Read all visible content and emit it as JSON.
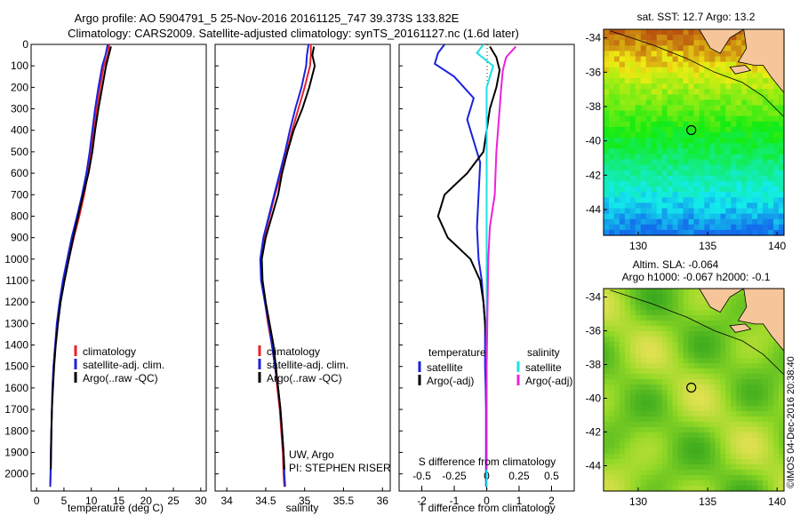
{
  "header": {
    "line1": "Argo profile: AO 5904791_5 25-Nov-2016 20161125_747 39.373S 133.82E",
    "line2": "Climatology: CARS2009. Satellite-adjusted climatology: synTS_20161127.nc (1.6d later)"
  },
  "colors": {
    "climatology": "#e8202a",
    "satellite": "#1a22dd",
    "argo": "#000000",
    "sal_satellite": "#1ee0e0",
    "sal_argo": "#ee20dd",
    "land": "#f6c69a",
    "map_marker": "#000000"
  },
  "chart_data": [
    {
      "id": "temperature-profile",
      "type": "line",
      "xlabel": "temperature (deg C)",
      "ylabel": "",
      "xlim": [
        -1,
        31
      ],
      "ylim": [
        2080,
        0
      ],
      "xticks": [
        0,
        5,
        10,
        15,
        20,
        25,
        30
      ],
      "yticks": [
        0,
        100,
        200,
        300,
        400,
        500,
        600,
        700,
        800,
        900,
        1000,
        1100,
        1200,
        1300,
        1400,
        1500,
        1600,
        1700,
        1800,
        1900,
        2000
      ],
      "legend": [
        "climatology",
        "satellite-adj. clim.",
        "Argo(..raw -QC)"
      ],
      "series": [
        {
          "name": "climatology",
          "color_key": "climatology",
          "x": [
            13.3,
            13.0,
            12.3,
            11.6,
            11.0,
            10.5,
            10.0,
            9.4,
            8.7,
            7.8,
            6.8,
            5.9,
            5.0,
            4.3,
            3.8,
            3.4,
            3.1,
            2.9,
            2.8,
            2.7,
            2.6,
            2.55,
            2.5
          ],
          "y": [
            0,
            50,
            100,
            200,
            300,
            400,
            500,
            600,
            700,
            800,
            900,
            1000,
            1100,
            1200,
            1300,
            1400,
            1500,
            1600,
            1700,
            1800,
            1900,
            2000,
            2060
          ]
        },
        {
          "name": "satellite-adj. clim.",
          "color_key": "satellite",
          "x": [
            13.0,
            12.6,
            12.0,
            11.3,
            10.7,
            10.2,
            9.7,
            9.1,
            8.3,
            7.4,
            6.4,
            5.6,
            4.8,
            4.2,
            3.7,
            3.4,
            3.1,
            2.9,
            2.8,
            2.7,
            2.6,
            2.55,
            2.5
          ],
          "y": [
            0,
            50,
            100,
            200,
            300,
            400,
            500,
            600,
            700,
            800,
            900,
            1000,
            1100,
            1200,
            1300,
            1400,
            1500,
            1600,
            1700,
            1800,
            1900,
            2000,
            2060
          ]
        },
        {
          "name": "Argo(..raw -QC)",
          "color_key": "argo",
          "x": [
            13.6,
            13.2,
            12.7,
            12.0,
            11.3,
            10.7,
            10.2,
            9.5,
            8.5,
            7.6,
            6.7,
            5.9,
            5.1,
            4.4,
            3.9,
            3.5,
            3.2,
            3.0,
            2.8,
            2.7,
            2.65,
            2.6
          ],
          "y": [
            10,
            50,
            100,
            200,
            300,
            400,
            500,
            600,
            700,
            800,
            900,
            1000,
            1100,
            1200,
            1300,
            1400,
            1500,
            1600,
            1700,
            1800,
            1900,
            1980
          ]
        }
      ]
    },
    {
      "id": "salinity-profile",
      "type": "line",
      "xlabel": "salinity",
      "ylabel": "",
      "xlim": [
        33.85,
        36.1
      ],
      "ylim": [
        2080,
        0
      ],
      "xticks": [
        34,
        34.5,
        35,
        35.5,
        36
      ],
      "legend": [
        "climatology",
        "satellite-adj. clim.",
        "Argo(..raw -QC)"
      ],
      "annotations": [
        "UW, Argo",
        "PI: STEPHEN RISER"
      ],
      "series": [
        {
          "name": "climatology",
          "color_key": "climatology",
          "x": [
            35.08,
            35.08,
            35.07,
            35.0,
            34.92,
            34.84,
            34.77,
            34.7,
            34.62,
            34.55,
            34.48,
            34.44,
            34.45,
            34.49,
            34.53,
            34.58,
            34.62,
            34.65,
            34.68,
            34.7,
            34.72,
            34.73,
            34.74
          ],
          "y": [
            0,
            50,
            100,
            200,
            300,
            400,
            500,
            600,
            700,
            800,
            900,
            1000,
            1100,
            1200,
            1300,
            1400,
            1500,
            1600,
            1700,
            1800,
            1900,
            2000,
            2060
          ]
        },
        {
          "name": "satellite-adj. clim.",
          "color_key": "satellite",
          "x": [
            35.05,
            35.03,
            35.02,
            34.96,
            34.88,
            34.81,
            34.75,
            34.68,
            34.61,
            34.54,
            34.47,
            34.43,
            34.44,
            34.49,
            34.54,
            34.58,
            34.62,
            34.66,
            34.69,
            34.71,
            34.73,
            34.74,
            34.75
          ],
          "y": [
            0,
            50,
            100,
            200,
            300,
            400,
            500,
            600,
            700,
            800,
            900,
            1000,
            1100,
            1200,
            1300,
            1400,
            1500,
            1600,
            1700,
            1800,
            1900,
            2000,
            2060
          ]
        },
        {
          "name": "Argo(..raw -QC)",
          "color_key": "argo",
          "x": [
            35.12,
            35.1,
            35.13,
            35.06,
            34.97,
            34.86,
            34.78,
            34.71,
            34.66,
            34.58,
            34.5,
            34.45,
            34.46,
            34.5,
            34.55,
            34.6,
            34.63,
            34.66,
            34.69,
            34.71,
            34.73,
            34.74
          ],
          "y": [
            10,
            50,
            100,
            200,
            300,
            400,
            500,
            600,
            700,
            800,
            900,
            1000,
            1100,
            1200,
            1300,
            1400,
            1500,
            1600,
            1700,
            1800,
            1900,
            1980
          ]
        }
      ]
    },
    {
      "id": "difference-profile",
      "type": "line",
      "xlabel": "T difference from climatology",
      "xlabel_top": "S difference from climatology",
      "xlim": [
        -2.7,
        2.7
      ],
      "ylim": [
        2080,
        0
      ],
      "xticks": [
        -2,
        -1,
        0,
        1,
        2
      ],
      "top_ticks": [
        "-0.5",
        "-0.25",
        "0",
        "0.25",
        "0.5"
      ],
      "legend_groups": [
        {
          "title": "temperature",
          "items": [
            "satellite",
            "Argo(-adj)"
          ]
        },
        {
          "title": "salinity",
          "items": [
            "satellite",
            "Argo(-adj)"
          ]
        }
      ],
      "series": [
        {
          "name": "temperature satellite",
          "color_key": "satellite",
          "x": [
            -1.3,
            -1.5,
            -1.6,
            -1.0,
            -0.4,
            -0.6,
            -0.4,
            -0.2,
            -0.25,
            -0.3,
            -0.25,
            -0.15,
            -0.1,
            -0.05,
            -0.05,
            -0.05,
            -0.03,
            -0.02,
            -0.02,
            -0.02,
            -0.02,
            -0.02
          ],
          "y": [
            0,
            40,
            90,
            150,
            250,
            350,
            450,
            550,
            700,
            850,
            1000,
            1100,
            1200,
            1300,
            1400,
            1500,
            1600,
            1700,
            1800,
            1900,
            2000,
            2060
          ]
        },
        {
          "name": "temperature Argo(-adj)",
          "color_key": "argo",
          "x": [
            0.1,
            0.3,
            0.4,
            0.3,
            0.1,
            0.0,
            -0.1,
            -0.6,
            -1.3,
            -1.5,
            -1.2,
            -0.5,
            -0.2,
            -0.1,
            -0.05,
            0.0,
            0.0,
            0.0,
            0.0,
            0.0,
            0.0
          ],
          "y": [
            10,
            60,
            120,
            200,
            300,
            400,
            500,
            600,
            700,
            800,
            900,
            1000,
            1100,
            1200,
            1300,
            1400,
            1500,
            1600,
            1700,
            1800,
            1980
          ]
        },
        {
          "name": "salinity satellite",
          "color_key": "sal_satellite",
          "x": [
            -0.1,
            -0.3,
            0.2,
            0.0,
            0.0,
            0.0,
            0.0,
            0.0,
            0.0,
            0.0
          ],
          "y": [
            0,
            40,
            100,
            200,
            400,
            600,
            800,
            1000,
            1500,
            2060
          ]
        },
        {
          "name": "salinity Argo(-adj)",
          "color_key": "sal_argo",
          "x": [
            0.9,
            0.6,
            0.5,
            0.45,
            0.4,
            0.3,
            0.25,
            0.1,
            0.05,
            0.0,
            0.0
          ],
          "y": [
            10,
            60,
            120,
            200,
            300,
            500,
            700,
            850,
            1000,
            1500,
            1980
          ]
        }
      ]
    }
  ],
  "maps": [
    {
      "id": "sst-map",
      "title": "sat. SST: 12.7  Argo: 13.2",
      "title_lines": [],
      "x_ticks": [
        "130",
        "135",
        "140"
      ],
      "y_ticks": [
        "-34",
        "-36",
        "-38",
        "-40",
        "-42",
        "-44"
      ],
      "lon_range": [
        127.5,
        140.5
      ],
      "lat_range": [
        -45.5,
        -33.5
      ],
      "marker": {
        "lon": 133.82,
        "lat": -39.37
      },
      "field": "sst"
    },
    {
      "id": "sla-map",
      "title": "",
      "title_lines": [
        "Altim. SLA: -0.064",
        "Argo h1000: -0.067 h2000: -0.1"
      ],
      "x_ticks": [
        "130",
        "135",
        "140"
      ],
      "y_ticks": [
        "-34",
        "-36",
        "-38",
        "-40",
        "-42",
        "-44"
      ],
      "lon_range": [
        127.5,
        140.5
      ],
      "lat_range": [
        -45.5,
        -33.5
      ],
      "marker": {
        "lon": 133.82,
        "lat": -39.37
      },
      "field": "sla"
    }
  ],
  "credit": "©IMOS 04-Dec-2016 20:38:40"
}
